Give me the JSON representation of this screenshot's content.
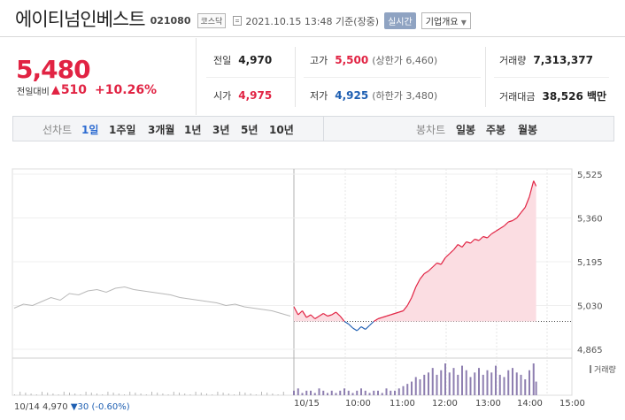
{
  "header": {
    "company_name": "에이티넘인베스트",
    "code": "021080",
    "market_badge": "코스닥",
    "datetime": "2021.10.15 13:48",
    "basis": "기준(장중)",
    "realtime_label": "실시간",
    "company_info_label": "기업개요",
    "icons": [
      "document-icon",
      "chevron-down-icon"
    ]
  },
  "price": {
    "current": "5,480",
    "change_label": "전일대비",
    "change_value": "510",
    "change_pct": "+10.26%",
    "direction": "up",
    "up_color": "#e12343",
    "down_color": "#1e5fb2"
  },
  "stats": {
    "prev_close_label": "전일",
    "prev_close": "4,970",
    "open_label": "시가",
    "open": "4,975",
    "high_label": "고가",
    "high": "5,500",
    "upper_limit": "(상한가 6,460)",
    "low_label": "저가",
    "low": "4,925",
    "lower_limit": "(하한가 3,480)",
    "volume_label": "거래량",
    "volume": "7,313,377",
    "amount_label": "거래대금",
    "amount": "38,526 백만"
  },
  "tabs": {
    "line_label": "선차트",
    "line_tabs": [
      "1일",
      "1주일",
      "3개월",
      "1년",
      "3년",
      "5년",
      "10년"
    ],
    "active": "1일",
    "candle_label": "봉차트",
    "candle_tabs": [
      "일봉",
      "주봉",
      "월봉"
    ]
  },
  "chart_data": {
    "type": "line",
    "title": "",
    "y_ticks": [
      "5,525",
      "5,360",
      "5,195",
      "5,030",
      "4,865"
    ],
    "ylim": [
      4865,
      5525
    ],
    "prev_close": 4970,
    "x_ticks": [
      "10/14",
      "10/15",
      "10:00",
      "11:00",
      "12:00",
      "13:00",
      "14:00",
      "15:00"
    ],
    "previous_day_series": {
      "name": "10/14",
      "values": [
        5020,
        5035,
        5030,
        5045,
        5060,
        5050,
        5075,
        5070,
        5085,
        5090,
        5080,
        5095,
        5100,
        5090,
        5085,
        5080,
        5075,
        5070,
        5060,
        5055,
        5050,
        5045,
        5040,
        5030,
        5035,
        5025,
        5020,
        5015,
        5010,
        5000,
        4990
      ]
    },
    "today_series": {
      "name": "10/15",
      "times": [
        "09:00",
        "09:05",
        "09:10",
        "09:15",
        "09:20",
        "09:25",
        "09:30",
        "09:35",
        "09:40",
        "09:45",
        "09:50",
        "09:55",
        "10:00",
        "10:05",
        "10:10",
        "10:15",
        "10:20",
        "10:25",
        "10:30",
        "10:35",
        "10:40",
        "10:45",
        "10:50",
        "10:55",
        "11:00",
        "11:05",
        "11:10",
        "11:15",
        "11:20",
        "11:25",
        "11:30",
        "11:35",
        "11:40",
        "11:45",
        "11:50",
        "11:55",
        "12:00",
        "12:05",
        "12:10",
        "12:15",
        "12:20",
        "12:25",
        "12:30",
        "12:35",
        "12:40",
        "12:45",
        "12:50",
        "12:55",
        "13:00",
        "13:05",
        "13:10",
        "13:15",
        "13:20",
        "13:25",
        "13:30",
        "13:35",
        "13:40",
        "13:45",
        "13:48"
      ],
      "values": [
        5025,
        4995,
        5010,
        4985,
        4995,
        4980,
        4990,
        5000,
        4990,
        4995,
        5005,
        4990,
        4970,
        4960,
        4945,
        4935,
        4950,
        4940,
        4955,
        4970,
        4980,
        4985,
        4990,
        4995,
        5000,
        5005,
        5010,
        5030,
        5060,
        5100,
        5130,
        5150,
        5160,
        5175,
        5190,
        5185,
        5210,
        5225,
        5240,
        5260,
        5250,
        5270,
        5265,
        5280,
        5275,
        5290,
        5285,
        5300,
        5310,
        5320,
        5330,
        5345,
        5350,
        5360,
        5380,
        5400,
        5440,
        5500,
        5480
      ]
    },
    "volume_legend": "거래량",
    "volume_values": [
      2,
      3,
      1,
      2,
      2,
      1,
      3,
      2,
      1,
      2,
      1,
      2,
      3,
      2,
      1,
      2,
      3,
      2,
      1,
      2,
      2,
      1,
      3,
      2,
      2,
      3,
      4,
      5,
      6,
      8,
      7,
      9,
      10,
      12,
      9,
      11,
      14,
      10,
      12,
      9,
      13,
      11,
      8,
      10,
      12,
      9,
      11,
      10,
      13,
      9,
      8,
      11,
      12,
      10,
      9,
      7,
      11,
      14,
      6
    ],
    "grid": true
  },
  "footer": {
    "date": "10/14",
    "price": "4,970",
    "change": "▼30",
    "pct": "(-0.60%)"
  }
}
